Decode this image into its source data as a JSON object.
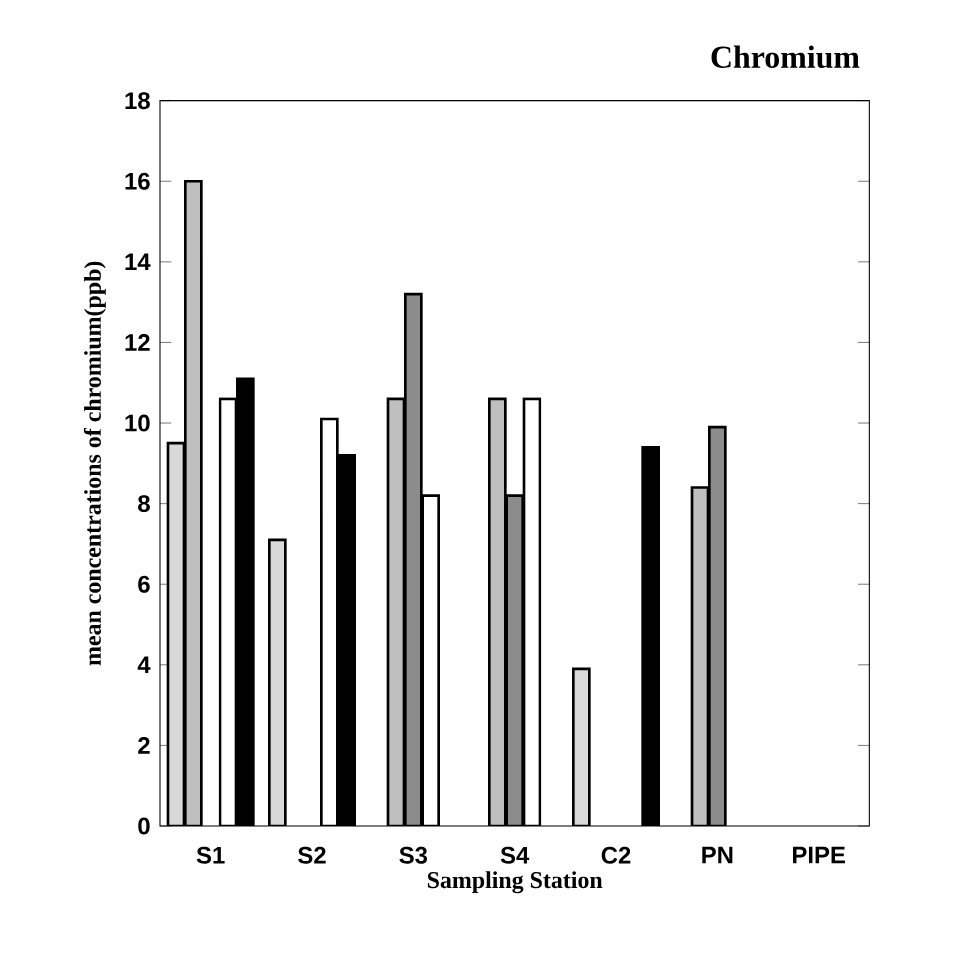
{
  "chart_data": {
    "type": "bar",
    "title": "Chromium",
    "xlabel": "Sampling Station",
    "ylabel": "mean concentrations of chromium(ppb)",
    "categories": [
      "S1",
      "S2",
      "S3",
      "S4",
      "C2",
      "PN",
      "PIPE"
    ],
    "series": [
      {
        "color": "#d9d9d9",
        "values": [
          9.5,
          7.1,
          null,
          null,
          3.9,
          null,
          null
        ]
      },
      {
        "color": "#bfbfbf",
        "values": [
          16,
          null,
          10.6,
          10.6,
          null,
          8.4,
          null
        ]
      },
      {
        "color": "#8c8c8c",
        "values": [
          null,
          null,
          13.2,
          8.2,
          null,
          9.9,
          null
        ]
      },
      {
        "color": "#ffffff",
        "values": [
          10.6,
          10.1,
          8.2,
          10.6,
          null,
          null,
          null
        ]
      },
      {
        "color": "#000000",
        "values": [
          11.1,
          9.2,
          null,
          null,
          9.4,
          null,
          null
        ]
      }
    ],
    "ylim": [
      0,
      18
    ],
    "yticks": [
      0,
      2,
      4,
      6,
      8,
      10,
      12,
      14,
      16,
      18
    ]
  }
}
